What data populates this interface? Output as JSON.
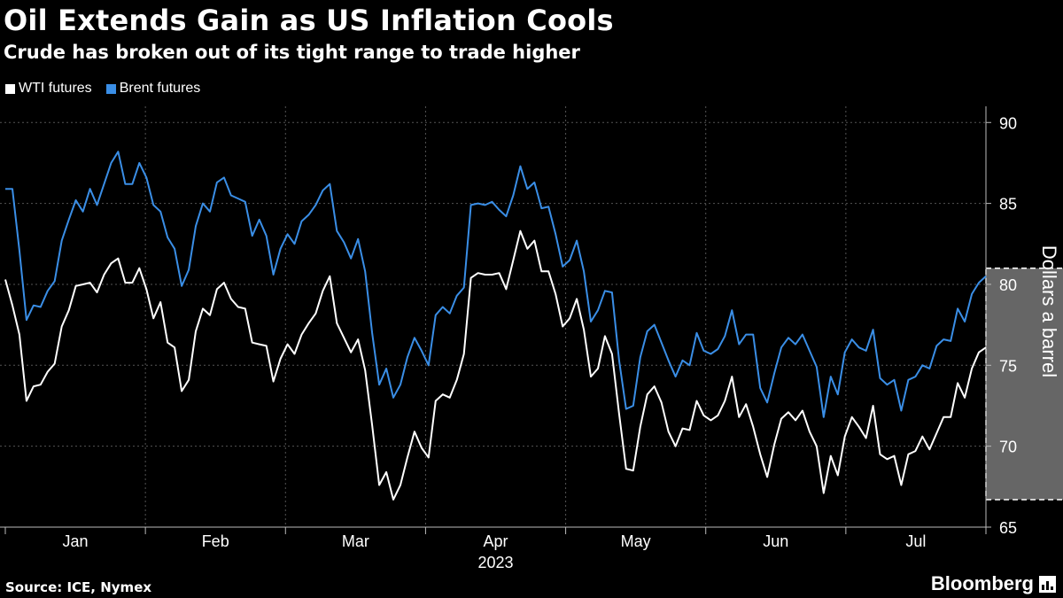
{
  "header": {
    "title": "Oil Extends Gain as US Inflation Cools",
    "subtitle": "Crude has broken out of its tight range to trade higher"
  },
  "footer": {
    "source": "Source: ICE, Nymex",
    "brand": "Bloomberg"
  },
  "colors": {
    "background": "#000000",
    "wti": "#ffffff",
    "brent": "#3a8ee6",
    "highlight": "#666666"
  },
  "chart_data": {
    "type": "line",
    "title": "Oil Extends Gain as US Inflation Cools",
    "subtitle": "Crude has broken out of its tight range to trade higher",
    "xlabel": "2023",
    "ylabel": "Dollars a barrel",
    "ylim": [
      65,
      91
    ],
    "yticks": [
      65,
      70,
      75,
      80,
      85,
      90
    ],
    "x_month_labels": [
      "Jan",
      "Feb",
      "Mar",
      "Apr",
      "May",
      "Jun",
      "Jul"
    ],
    "x_year_label": "2023",
    "grid": true,
    "legend_position": "top-left",
    "highlight_region": {
      "x_start": 139,
      "x_end": 155,
      "y_start": 66.7,
      "y_end": 81
    },
    "series": [
      {
        "name": "WTI futures",
        "color": "#ffffff",
        "values": [
          80.3,
          78.7,
          76.9,
          72.8,
          73.7,
          73.8,
          74.6,
          75.1,
          77.4,
          78.4,
          79.9,
          80.0,
          80.1,
          79.5,
          80.6,
          81.3,
          81.6,
          80.1,
          80.1,
          81.0,
          79.7,
          77.9,
          78.9,
          76.4,
          76.1,
          73.4,
          74.1,
          77.1,
          78.5,
          78.1,
          79.7,
          80.1,
          79.1,
          78.6,
          78.5,
          76.4,
          76.3,
          76.2,
          74.0,
          75.4,
          76.3,
          75.7,
          76.9,
          77.6,
          78.2,
          79.6,
          80.5,
          77.6,
          76.7,
          75.8,
          76.6,
          74.7,
          71.3,
          67.6,
          68.4,
          66.7,
          67.6,
          69.3,
          70.9,
          69.9,
          69.3,
          72.8,
          73.2,
          73.0,
          74.1,
          75.7,
          80.4,
          80.7,
          80.6,
          80.6,
          80.7,
          79.7,
          81.5,
          83.3,
          82.2,
          82.7,
          80.8,
          80.8,
          79.4,
          77.4,
          77.9,
          79.1,
          77.2,
          74.3,
          74.8,
          76.8,
          75.7,
          72.0,
          68.6,
          68.5,
          71.2,
          73.2,
          73.7,
          72.7,
          70.9,
          70.0,
          71.1,
          71.0,
          72.8,
          71.9,
          71.6,
          71.9,
          72.8,
          74.3,
          71.8,
          72.6,
          71.2,
          69.5,
          68.1,
          70.1,
          71.7,
          72.1,
          71.6,
          72.2,
          70.9,
          70.0,
          67.1,
          69.4,
          68.2,
          70.6,
          71.8,
          71.2,
          70.5,
          72.5,
          69.5,
          69.2,
          69.4,
          67.6,
          69.5,
          69.7,
          70.6,
          69.8,
          70.8,
          71.8,
          71.8,
          73.9,
          73.0,
          74.8,
          75.8,
          76.1
        ],
        "last_value": 76.1
      },
      {
        "name": "Brent futures",
        "color": "#3a8ee6",
        "values": [
          85.9,
          85.9,
          82.1,
          77.8,
          78.7,
          78.6,
          79.6,
          80.2,
          82.7,
          84.0,
          85.2,
          84.5,
          85.9,
          84.9,
          86.2,
          87.5,
          88.2,
          86.2,
          86.2,
          87.5,
          86.6,
          84.9,
          84.5,
          82.9,
          82.2,
          79.9,
          80.9,
          83.6,
          85.0,
          84.5,
          86.3,
          86.6,
          85.5,
          85.3,
          85.1,
          83.0,
          84.0,
          83.0,
          80.6,
          82.2,
          83.1,
          82.5,
          83.9,
          84.3,
          84.9,
          85.8,
          86.2,
          83.3,
          82.6,
          81.6,
          82.8,
          80.8,
          77.0,
          73.8,
          74.8,
          73.0,
          73.8,
          75.5,
          76.7,
          75.9,
          75.0,
          78.1,
          78.6,
          78.2,
          79.3,
          79.8,
          84.9,
          85.0,
          84.9,
          85.1,
          84.6,
          84.2,
          85.5,
          87.3,
          85.9,
          86.3,
          84.7,
          84.8,
          83.1,
          81.1,
          81.5,
          82.7,
          80.8,
          77.7,
          78.4,
          79.6,
          79.5,
          75.3,
          72.3,
          72.5,
          75.5,
          77.1,
          77.5,
          76.4,
          75.3,
          74.3,
          75.3,
          75.0,
          77.0,
          75.9,
          75.7,
          76.0,
          76.8,
          78.4,
          76.3,
          76.9,
          76.9,
          73.6,
          72.7,
          74.5,
          76.1,
          76.7,
          76.3,
          76.9,
          75.9,
          74.9,
          71.8,
          74.3,
          73.2,
          75.8,
          76.6,
          76.1,
          75.9,
          77.2,
          74.2,
          73.8,
          74.1,
          72.2,
          74.1,
          74.3,
          75.0,
          74.8,
          76.2,
          76.6,
          76.5,
          78.5,
          77.7,
          79.4,
          80.1,
          80.5
        ],
        "last_value": 80.5
      }
    ]
  }
}
